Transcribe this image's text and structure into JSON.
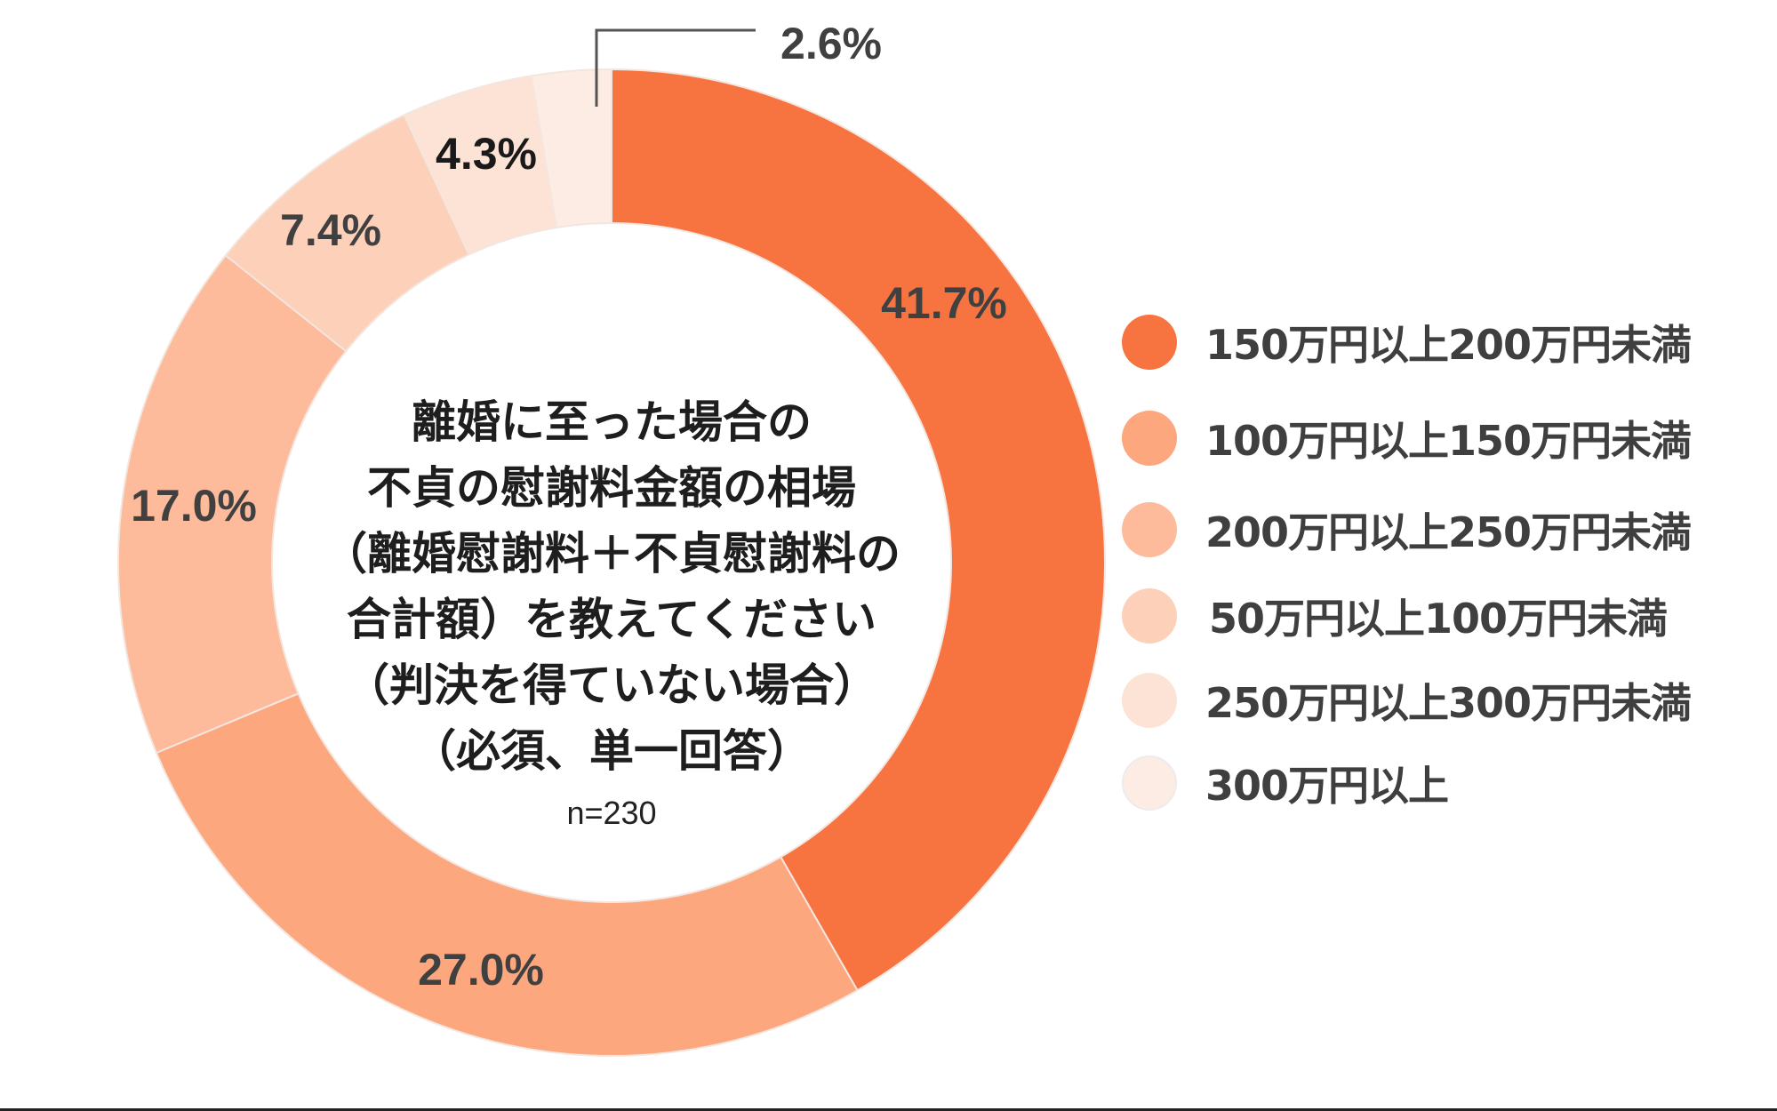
{
  "chart_data": {
    "type": "pie",
    "variant": "donut",
    "title": "離婚に至った場合の不貞の慰謝料金額の相場（離婚慰謝料＋不貞慰謝料の合計額）を教えてください（判決を得ていない場合）（必須、単一回答）",
    "sample_size": "n=230",
    "categories": [
      "150万円以上200万円未満",
      "100万円以上150万円未満",
      "200万円以上250万円未満",
      "50万円以上100万円未満",
      "250万円以上300万円未満",
      "300万円以上"
    ],
    "values": [
      41.7,
      27.0,
      17.0,
      7.4,
      4.3,
      2.6
    ],
    "unit": "%",
    "colors": [
      "#f77441",
      "#fca77e",
      "#fdbb9b",
      "#fdd0b9",
      "#fde3d6",
      "#fdece4"
    ],
    "start_angle_deg": 0,
    "direction": "clockwise",
    "legend_position": "right"
  },
  "center": {
    "title_lines": [
      "離婚に至った場合の",
      "不貞の慰謝料金額の相場",
      "（離婚慰謝料＋不貞慰謝料の",
      "合計額）を教えてください",
      "（判決を得ていない場合）",
      "（必須、単一回答）"
    ],
    "n_label": "n=230"
  },
  "labels": {
    "s0": "41.7%",
    "s1": "27.0%",
    "s2": "17.0%",
    "s3": "7.4%",
    "s4": "4.3%",
    "s5": "2.6%"
  },
  "legend": [
    {
      "label": "150万円以上200万円未満",
      "color": "#f77441"
    },
    {
      "label": "100万円以上150万円未満",
      "color": "#fca77e"
    },
    {
      "label": "200万円以上250万円未満",
      "color": "#fdbb9b"
    },
    {
      "label": "50万円以上100万円未満",
      "color": "#fdd0b9"
    },
    {
      "label": "250万円以上300万円未満",
      "color": "#fde3d6"
    },
    {
      "label": "300万円以上",
      "color": "#fdece4"
    }
  ]
}
